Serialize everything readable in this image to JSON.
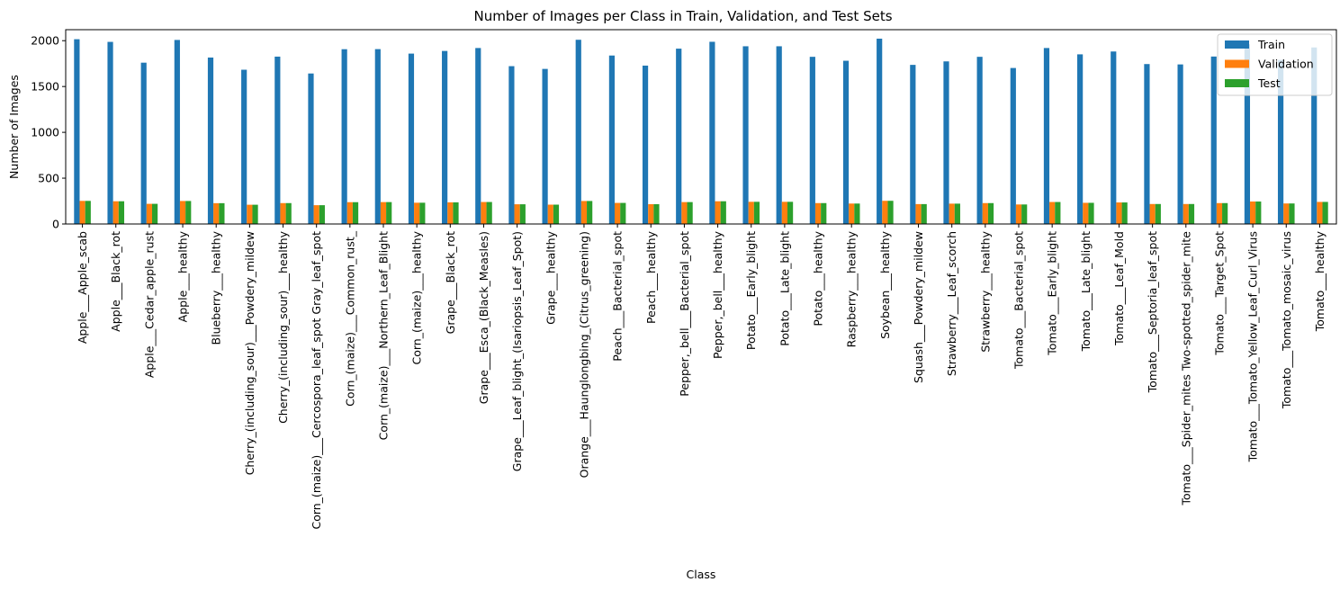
{
  "chart_data": {
    "type": "bar",
    "title": "Number of Images per Class in Train, Validation, and Test Sets",
    "xlabel": "Class",
    "ylabel": "Number of Images",
    "ylim": [
      0,
      2120
    ],
    "yticks": [
      0,
      500,
      1000,
      1500,
      2000
    ],
    "grid": false,
    "legend_position": "top-right",
    "categories": [
      "Apple___Apple_scab",
      "Apple___Black_rot",
      "Apple___Cedar_apple_rust",
      "Apple___healthy",
      "Blueberry___healthy",
      "Cherry_(including_sour)___Powdery_mildew",
      "Cherry_(including_sour)___healthy",
      "Corn_(maize)___Cercospora_leaf_spot Gray_leaf_spot",
      "Corn_(maize)___Common_rust_",
      "Corn_(maize)___Northern_Leaf_Blight",
      "Corn_(maize)___healthy",
      "Grape___Black_rot",
      "Grape___Esca_(Black_Measles)",
      "Grape___Leaf_blight_(Isariopsis_Leaf_Spot)",
      "Grape___healthy",
      "Orange___Haunglongbing_(Citrus_greening)",
      "Peach___Bacterial_spot",
      "Peach___healthy",
      "Pepper,_bell___Bacterial_spot",
      "Pepper,_bell___healthy",
      "Potato___Early_blight",
      "Potato___Late_blight",
      "Potato___healthy",
      "Raspberry___healthy",
      "Soybean___healthy",
      "Squash___Powdery_mildew",
      "Strawberry___Leaf_scorch",
      "Strawberry___healthy",
      "Tomato___Bacterial_spot",
      "Tomato___Early_blight",
      "Tomato___Late_blight",
      "Tomato___Leaf_Mold",
      "Tomato___Septoria_leaf_spot",
      "Tomato___Spider_mites Two-spotted_spider_mite",
      "Tomato___Target_Spot",
      "Tomato___Tomato_Yellow_Leaf_Curl_Virus",
      "Tomato___Tomato_mosaic_virus",
      "Tomato___healthy"
    ],
    "series": [
      {
        "name": "Train",
        "color": "#1f77b4",
        "values": [
          2016,
          1987,
          1760,
          2008,
          1816,
          1683,
          1826,
          1642,
          1907,
          1908,
          1859,
          1888,
          1920,
          1722,
          1692,
          2010,
          1838,
          1728,
          1913,
          1988,
          1939,
          1939,
          1824,
          1781,
          2022,
          1736,
          1774,
          1824,
          1702,
          1920,
          1851,
          1882,
          1745,
          1741,
          1827,
          1961,
          1790,
          1926
        ]
      },
      {
        "name": "Validation",
        "color": "#ff7f0e",
        "values": [
          252,
          248,
          220,
          251,
          227,
          210,
          228,
          205,
          238,
          239,
          232,
          236,
          240,
          215,
          211,
          251,
          230,
          216,
          239,
          248,
          242,
          242,
          228,
          223,
          253,
          217,
          222,
          228,
          213,
          240,
          231,
          235,
          218,
          218,
          228,
          245,
          224,
          241
        ]
      },
      {
        "name": "Test",
        "color": "#2ca02c",
        "values": [
          252,
          248,
          220,
          251,
          227,
          210,
          228,
          205,
          238,
          239,
          232,
          236,
          240,
          215,
          211,
          251,
          230,
          216,
          239,
          248,
          242,
          242,
          228,
          223,
          253,
          217,
          222,
          228,
          213,
          240,
          231,
          235,
          218,
          218,
          228,
          245,
          224,
          241
        ]
      }
    ]
  }
}
